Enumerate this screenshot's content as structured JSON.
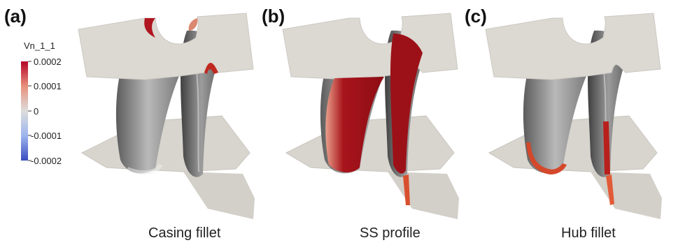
{
  "panels": [
    {
      "label": "(a)",
      "caption": "Casing fillet",
      "highlight": "casing"
    },
    {
      "label": "(b)",
      "caption": "SS profile",
      "highlight": "ss"
    },
    {
      "label": "(c)",
      "caption": "Hub fillet",
      "highlight": "hub"
    }
  ],
  "colorbar": {
    "title": "Vn_1_1",
    "ticks": [
      "0.0002",
      "0.0001",
      "0",
      "-0.0001",
      "-0.0002"
    ],
    "colors": {
      "max": "#b40426",
      "mid": "#dddddd",
      "min": "#3b4cc0"
    }
  },
  "colors": {
    "plate": "#d9d5cf",
    "blade_dark": "#6a6a6a",
    "blade_light": "#b8b8b8",
    "sensitivity": "#a8141c"
  }
}
